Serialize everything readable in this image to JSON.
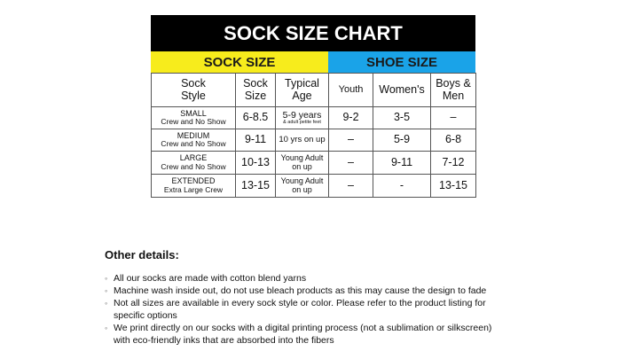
{
  "header": {
    "title": "SOCK SIZE CHART",
    "left_band": "SOCK SIZE",
    "right_band": "SHOE SIZE"
  },
  "table": {
    "columns": [
      [
        "Sock",
        "Style"
      ],
      [
        "Sock",
        "Size"
      ],
      [
        "Typical",
        "Age"
      ],
      [
        "Youth"
      ],
      [
        "Women's"
      ],
      [
        "Boys &",
        "Men"
      ]
    ],
    "rows": [
      [
        [
          "SMALL",
          "Crew and No Show"
        ],
        [
          "6-8.5"
        ],
        [
          "5-9 years",
          "& adult petite feet"
        ],
        [
          "9-2"
        ],
        [
          "3-5"
        ],
        [
          "–"
        ]
      ],
      [
        [
          "MEDIUM",
          "Crew and No Show"
        ],
        [
          "9-11"
        ],
        [
          "10 yrs on up"
        ],
        [
          "–"
        ],
        [
          "5-9"
        ],
        [
          "6-8"
        ]
      ],
      [
        [
          "LARGE",
          "Crew and No Show"
        ],
        [
          "10-13"
        ],
        [
          "Young Adult",
          "on up"
        ],
        [
          "–"
        ],
        [
          "9-11"
        ],
        [
          "7-12"
        ]
      ],
      [
        [
          "EXTENDED",
          "Extra Large Crew"
        ],
        [
          "13-15"
        ],
        [
          "Young Adult",
          "on up"
        ],
        [
          "–"
        ],
        [
          "-"
        ],
        [
          "13-15"
        ]
      ]
    ]
  },
  "details": {
    "title": "Other details:",
    "items": [
      [
        "All our socks are made with cotton blend yarns"
      ],
      [
        "Machine wash inside out, do not use bleach products as this may cause the design to fade"
      ],
      [
        "Not all sizes are available in every sock style or color.  Please refer to the product listing for",
        "specific options"
      ],
      [
        "We print directly on our socks with a digital printing process (not a sublimation or silkscreen)",
        "with eco-friendly inks that are absorbed into the fibers"
      ]
    ]
  }
}
